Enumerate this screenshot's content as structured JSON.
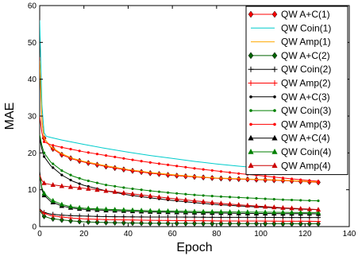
{
  "chart_data": {
    "type": "line",
    "title": "",
    "xlabel": "Epoch",
    "ylabel": "MAE",
    "xlim": [
      0,
      140
    ],
    "ylim": [
      0,
      60
    ],
    "xticks": [
      0,
      20,
      40,
      60,
      80,
      100,
      120,
      140
    ],
    "yticks": [
      0,
      10,
      20,
      30,
      40,
      50,
      60
    ],
    "grid": false,
    "legend_position": "top-right",
    "series": [
      {
        "name": "QW A+C(1)",
        "color": "#ff0000",
        "marker_color": "#ff0000",
        "marker": "diamond",
        "x": [
          0,
          1,
          2,
          5,
          10,
          15,
          20,
          30,
          40,
          50,
          60,
          70,
          80,
          90,
          100,
          110,
          120,
          126
        ],
        "y": [
          46,
          29,
          24,
          21.5,
          19.5,
          18.3,
          17.5,
          16.3,
          15.3,
          14.5,
          13.9,
          13.5,
          13.1,
          12.9,
          12.7,
          12.5,
          12.2,
          12.0
        ]
      },
      {
        "name": "QW Coin(1)",
        "color": "#00cccc",
        "marker": "none",
        "x": [
          0,
          1,
          2,
          3,
          5,
          10,
          20,
          30,
          40,
          50,
          60,
          70,
          80,
          90,
          100,
          110,
          120,
          126
        ],
        "y": [
          56,
          33,
          25.5,
          24.5,
          24.2,
          23.5,
          22.3,
          21.2,
          20.2,
          19.3,
          18.5,
          17.7,
          17.0,
          16.4,
          15.9,
          15.4,
          15.0,
          14.7
        ]
      },
      {
        "name": "QW Amp(1)",
        "color": "#ffaa00",
        "marker": "none",
        "x": [
          0,
          1,
          2,
          5,
          10,
          15,
          20,
          30,
          40,
          50,
          60,
          70,
          80,
          90,
          100,
          110,
          120,
          126
        ],
        "y": [
          45,
          28.5,
          24,
          21.7,
          19.8,
          18.5,
          17.7,
          16.5,
          15.5,
          14.7,
          14.1,
          13.6,
          13.2,
          13.0,
          12.8,
          12.6,
          12.3,
          12.1
        ]
      },
      {
        "name": "QW A+C(2)",
        "color": "#006400",
        "marker_color": "#006400",
        "marker": "diamond",
        "x": [
          0,
          1,
          2,
          5,
          10,
          15,
          20,
          30,
          40,
          50,
          60,
          70,
          80,
          90,
          100,
          110,
          120,
          126
        ],
        "y": [
          4.5,
          3.5,
          2.8,
          2.2,
          1.8,
          1.5,
          1.3,
          1.1,
          1.0,
          0.9,
          0.9,
          0.85,
          0.8,
          0.8,
          0.8,
          0.75,
          0.75,
          0.75
        ]
      },
      {
        "name": "QW Coin(2)",
        "color": "#000000",
        "marker": "plus",
        "x": [
          0,
          1,
          2,
          5,
          10,
          15,
          20,
          30,
          40,
          50,
          60,
          70,
          80,
          90,
          100,
          110,
          120,
          126
        ],
        "y": [
          4.8,
          4.2,
          3.8,
          3.4,
          3.1,
          2.95,
          2.85,
          2.7,
          2.65,
          2.6,
          2.6,
          2.55,
          2.5,
          2.5,
          2.5,
          2.45,
          2.45,
          2.45
        ]
      },
      {
        "name": "QW Amp(2)",
        "color": "#ff0000",
        "marker": "plus",
        "x": [
          0,
          1,
          2,
          5,
          10,
          15,
          20,
          30,
          40,
          50,
          60,
          70,
          80,
          90,
          100,
          110,
          120,
          126
        ],
        "y": [
          4.6,
          4.0,
          3.6,
          3.0,
          2.6,
          2.3,
          2.1,
          1.9,
          1.8,
          1.7,
          1.65,
          1.6,
          1.55,
          1.5,
          1.5,
          1.45,
          1.45,
          1.4
        ]
      },
      {
        "name": "QW A+C(3)",
        "color": "#000000",
        "marker_color": "#000000",
        "marker": "dot",
        "x": [
          0,
          1,
          2,
          5,
          10,
          15,
          20,
          30,
          40,
          50,
          60,
          70,
          80,
          90,
          100,
          110,
          120,
          126
        ],
        "y": [
          24,
          21,
          19,
          16.5,
          14,
          12.3,
          11.2,
          9.7,
          8.6,
          7.8,
          7.1,
          6.5,
          6.0,
          5.6,
          5.3,
          5.0,
          4.7,
          4.6
        ]
      },
      {
        "name": "QW Coin(3)",
        "color": "#008000",
        "marker_color": "#008000",
        "marker": "dot",
        "x": [
          0,
          1,
          2,
          5,
          10,
          15,
          20,
          30,
          40,
          50,
          60,
          70,
          80,
          90,
          100,
          110,
          120,
          126
        ],
        "y": [
          25,
          22,
          20,
          17.5,
          15.2,
          13.7,
          12.7,
          11.3,
          10.4,
          9.7,
          9.1,
          8.6,
          8.2,
          7.9,
          7.6,
          7.3,
          7.1,
          7.0
        ]
      },
      {
        "name": "QW Amp(3)",
        "color": "#ff0000",
        "marker_color": "#ff0000",
        "marker": "dot",
        "x": [
          0,
          1,
          2,
          5,
          10,
          15,
          20,
          30,
          40,
          50,
          60,
          70,
          80,
          90,
          100,
          110,
          120,
          126
        ],
        "y": [
          30,
          25.5,
          23,
          22.2,
          21.5,
          20.9,
          20.3,
          19.3,
          18.3,
          17.4,
          16.6,
          15.8,
          15.1,
          14.4,
          13.8,
          13.2,
          12.6,
          12.3
        ]
      },
      {
        "name": "QW A+C(4)",
        "color": "#000000",
        "marker_color": "#000000",
        "marker": "triangle",
        "x": [
          0,
          1,
          2,
          5,
          10,
          15,
          20,
          30,
          40,
          50,
          60,
          70,
          80,
          90,
          100,
          110,
          120,
          126
        ],
        "y": [
          15,
          10,
          8.5,
          6.8,
          5.6,
          5.0,
          4.7,
          4.4,
          4.2,
          4.0,
          3.9,
          3.8,
          3.7,
          3.6,
          3.55,
          3.5,
          3.5,
          3.45
        ]
      },
      {
        "name": "QW Coin(4)",
        "color": "#008000",
        "marker_color": "#008000",
        "marker": "triangle",
        "x": [
          0,
          1,
          2,
          5,
          10,
          15,
          20,
          30,
          40,
          50,
          60,
          70,
          80,
          90,
          100,
          110,
          120,
          126
        ],
        "y": [
          14,
          10.5,
          9,
          7.3,
          6.0,
          5.3,
          5.0,
          4.7,
          4.5,
          4.3,
          4.2,
          4.1,
          4.0,
          3.95,
          3.9,
          3.85,
          3.8,
          3.8
        ]
      },
      {
        "name": "QW Amp(4)",
        "color": "#cc0000",
        "marker_color": "#cc0000",
        "marker": "triangle",
        "x": [
          0,
          1,
          2,
          5,
          10,
          15,
          20,
          30,
          40,
          50,
          60,
          70,
          80,
          90,
          100,
          110,
          120,
          126
        ],
        "y": [
          14,
          12.5,
          11.8,
          11.4,
          11.0,
          10.7,
          10.4,
          9.7,
          9.0,
          8.3,
          7.6,
          7.0,
          6.4,
          5.9,
          5.5,
          5.1,
          4.8,
          4.6
        ]
      }
    ]
  }
}
